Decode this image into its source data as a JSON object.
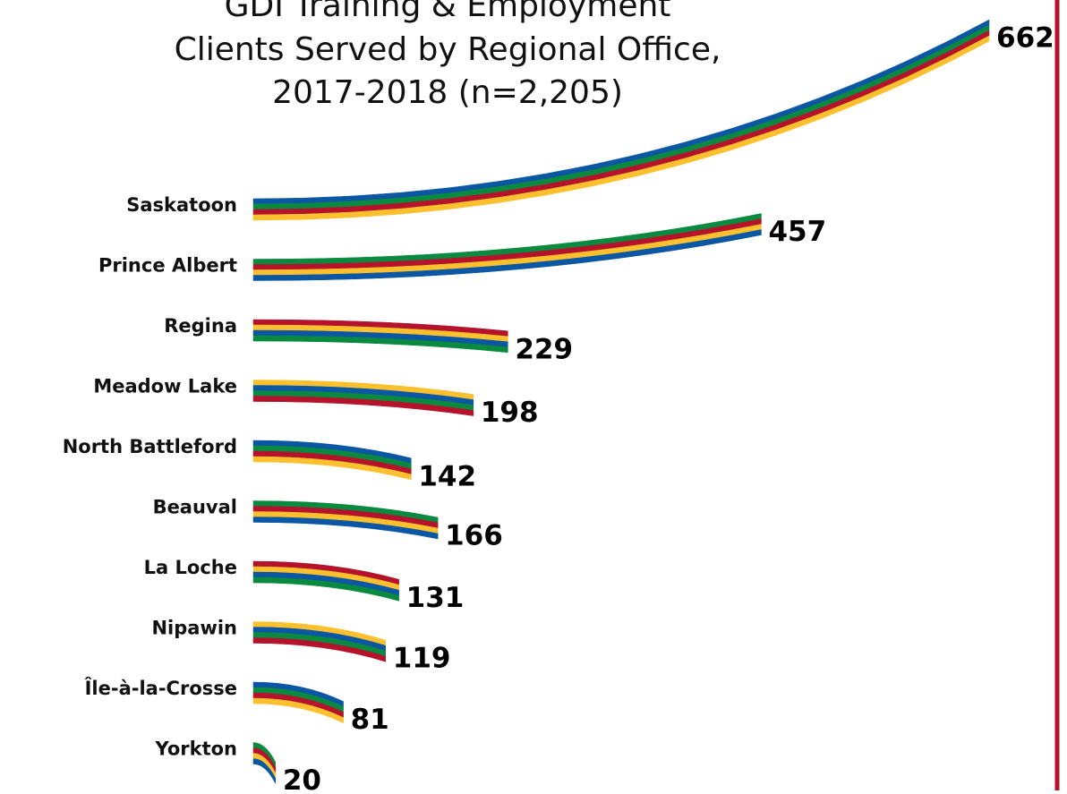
{
  "chart_data": {
    "type": "bar",
    "orientation": "horizontal",
    "title": [
      "GDI Training & Employment",
      "Clients Served by Regional Office,",
      "2017-2018  (n=2,205)"
    ],
    "categories": [
      "Saskatoon",
      "Prince Albert",
      "Regina",
      "Meadow Lake",
      "North Battleford",
      "Beauval",
      "La Loche",
      "Nipawin",
      "Île-à-la-Crosse",
      "Yorkton"
    ],
    "values": [
      662,
      457,
      229,
      198,
      142,
      166,
      131,
      119,
      81,
      20
    ],
    "colors": [
      "#0b57a4",
      "#0a8a3e",
      "#b5122b",
      "#fbc02d"
    ]
  }
}
